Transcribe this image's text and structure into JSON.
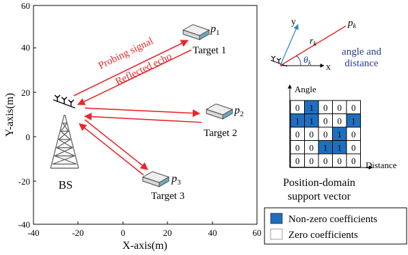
{
  "colors": {
    "arrow": "#e8272a",
    "nonzero": "#1f6fc0",
    "zero": "#ffffff",
    "axis": "#000000",
    "annotation": "#2b3a8c",
    "vector": "#2f86c8"
  },
  "icons": {
    "tower": "cell-tower-icon",
    "target": "target-device-icon"
  },
  "plot": {
    "x_axis_label": "X-axis(m)",
    "y_axis_label": "Y-axis(m)",
    "x_ticks": [
      "-40",
      "-20",
      "0",
      "20",
      "40",
      "60"
    ],
    "y_ticks": [
      "60",
      "40",
      "20",
      "0",
      "-20",
      "-40"
    ],
    "bs_label": "BS",
    "probing_label": "Probing signal",
    "echo_label": "Reflected echo",
    "targets": [
      {
        "device_label": "p",
        "subscript": "1",
        "name": "Target 1"
      },
      {
        "device_label": "p",
        "subscript": "2",
        "name": "Target 2"
      },
      {
        "device_label": "p",
        "subscript": "3",
        "name": "Target 3"
      }
    ]
  },
  "geometry_panel": {
    "y_label": "y",
    "x_label": "x",
    "r_label": "r",
    "r_sub": "k",
    "theta_label": "θ",
    "theta_sub": "k",
    "p_label": "p",
    "p_sub": "k",
    "caption_line1": "angle and",
    "caption_line2": "distance"
  },
  "matrix_panel": {
    "angle_label": "Angle",
    "distance_label": "Distance",
    "caption_line1": "Position-domain",
    "caption_line2": "support vector",
    "rows": [
      [
        "0",
        "1",
        "0",
        "0",
        "0"
      ],
      [
        "1",
        "1",
        "0",
        "0",
        "1"
      ],
      [
        "0",
        "0",
        "0",
        "1",
        "0"
      ],
      [
        "0",
        "0",
        "1",
        "1",
        "0"
      ],
      [
        "0",
        "0",
        "0",
        "0",
        "0"
      ]
    ],
    "nonzero_mask": [
      [
        0,
        1,
        0,
        0,
        0
      ],
      [
        1,
        1,
        0,
        0,
        1
      ],
      [
        0,
        0,
        0,
        1,
        0
      ],
      [
        0,
        0,
        1,
        1,
        0
      ],
      [
        0,
        0,
        0,
        0,
        0
      ]
    ]
  },
  "legend": {
    "nonzero_label": "Non-zero coefficients",
    "zero_label": "Zero coefficients"
  }
}
